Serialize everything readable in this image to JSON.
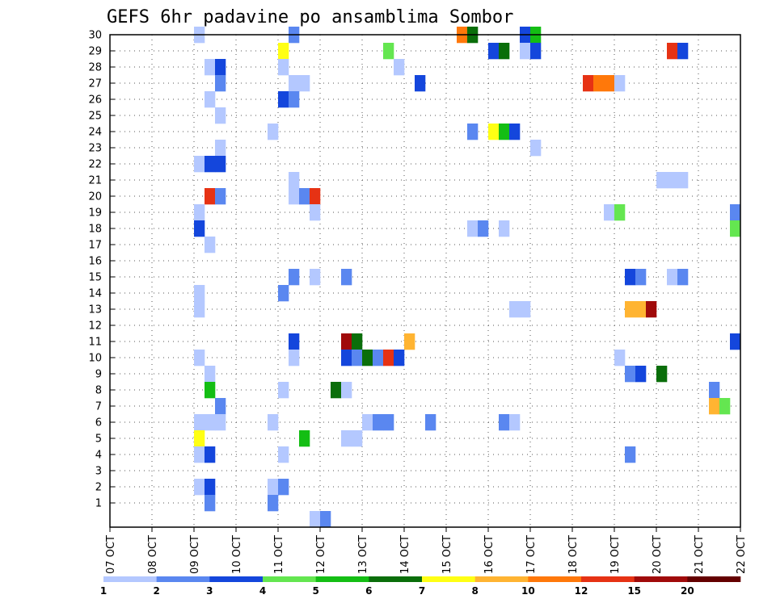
{
  "chart_data": {
    "type": "heatmap",
    "title": "GEFS 6hr padavine po ansamblima Sombor",
    "x_tick_labels": [
      "07 OCT",
      "08 OCT",
      "09 OCT",
      "10 OCT",
      "11 OCT",
      "12 OCT",
      "13 OCT",
      "14 OCT",
      "15 OCT",
      "16 OCT",
      "17 OCT",
      "18 OCT",
      "19 OCT",
      "20 OCT",
      "21 OCT",
      "22 OCT"
    ],
    "y_tick_labels": [
      "1",
      "2",
      "3",
      "4",
      "5",
      "6",
      "7",
      "8",
      "9",
      "10",
      "11",
      "12",
      "13",
      "14",
      "15",
      "16",
      "17",
      "18",
      "19",
      "20",
      "21",
      "22",
      "23",
      "24",
      "25",
      "26",
      "27",
      "28",
      "29",
      "30"
    ],
    "xlim": [
      0,
      60
    ],
    "ylim": [
      0,
      30
    ],
    "grid": true,
    "legend": {
      "placement": "bottom",
      "tick_labels": [
        "1",
        "2",
        "3",
        "4",
        "5",
        "6",
        "7",
        "8",
        "10",
        "12",
        "15",
        "20"
      ],
      "colors": [
        "#b4c8ff",
        "#5a87f0",
        "#1446dc",
        "#64e650",
        "#14be14",
        "#0a6e0a",
        "#ffff14",
        "#ffb432",
        "#ff780a",
        "#e63214",
        "#a00a0a",
        "#640000"
      ]
    },
    "cells": [
      {
        "x": 8,
        "y": 30,
        "level": 1
      },
      {
        "x": 17,
        "y": 30,
        "level": 2
      },
      {
        "x": 33,
        "y": 30,
        "level": 9
      },
      {
        "x": 34,
        "y": 30,
        "level": 6
      },
      {
        "x": 39,
        "y": 30,
        "level": 3
      },
      {
        "x": 40,
        "y": 30,
        "level": 5
      },
      {
        "x": 16,
        "y": 29,
        "level": 7
      },
      {
        "x": 26,
        "y": 29,
        "level": 4
      },
      {
        "x": 36,
        "y": 29,
        "level": 3
      },
      {
        "x": 37,
        "y": 29,
        "level": 6
      },
      {
        "x": 39,
        "y": 29,
        "level": 1
      },
      {
        "x": 40,
        "y": 29,
        "level": 3
      },
      {
        "x": 53,
        "y": 29,
        "level": 10
      },
      {
        "x": 54,
        "y": 29,
        "level": 3
      },
      {
        "x": 9,
        "y": 28,
        "level": 1
      },
      {
        "x": 10,
        "y": 28,
        "level": 3
      },
      {
        "x": 16,
        "y": 28,
        "level": 1
      },
      {
        "x": 27,
        "y": 28,
        "level": 1
      },
      {
        "x": 10,
        "y": 27,
        "level": 2
      },
      {
        "x": 17,
        "y": 27,
        "level": 1
      },
      {
        "x": 18,
        "y": 27,
        "level": 1
      },
      {
        "x": 29,
        "y": 27,
        "level": 3
      },
      {
        "x": 45,
        "y": 27,
        "level": 10
      },
      {
        "x": 46,
        "y": 27,
        "level": 9
      },
      {
        "x": 47,
        "y": 27,
        "level": 9
      },
      {
        "x": 48,
        "y": 27,
        "level": 1
      },
      {
        "x": 9,
        "y": 26,
        "level": 1
      },
      {
        "x": 16,
        "y": 26,
        "level": 3
      },
      {
        "x": 17,
        "y": 26,
        "level": 2
      },
      {
        "x": 10,
        "y": 25,
        "level": 1
      },
      {
        "x": 15,
        "y": 24,
        "level": 1
      },
      {
        "x": 34,
        "y": 24,
        "level": 2
      },
      {
        "x": 36,
        "y": 24,
        "level": 7
      },
      {
        "x": 37,
        "y": 24,
        "level": 5
      },
      {
        "x": 38,
        "y": 24,
        "level": 3
      },
      {
        "x": 10,
        "y": 23,
        "level": 1
      },
      {
        "x": 40,
        "y": 23,
        "level": 1
      },
      {
        "x": 8,
        "y": 22,
        "level": 1
      },
      {
        "x": 9,
        "y": 22,
        "level": 3
      },
      {
        "x": 10,
        "y": 22,
        "level": 3
      },
      {
        "x": 17,
        "y": 21,
        "level": 1
      },
      {
        "x": 52,
        "y": 21,
        "level": 1
      },
      {
        "x": 53,
        "y": 21,
        "level": 1
      },
      {
        "x": 54,
        "y": 21,
        "level": 1
      },
      {
        "x": 9,
        "y": 20,
        "level": 10
      },
      {
        "x": 10,
        "y": 20,
        "level": 2
      },
      {
        "x": 17,
        "y": 20,
        "level": 1
      },
      {
        "x": 18,
        "y": 20,
        "level": 2
      },
      {
        "x": 19,
        "y": 20,
        "level": 10
      },
      {
        "x": 8,
        "y": 19,
        "level": 1
      },
      {
        "x": 19,
        "y": 19,
        "level": 1
      },
      {
        "x": 47,
        "y": 19,
        "level": 1
      },
      {
        "x": 48,
        "y": 19,
        "level": 4
      },
      {
        "x": 59,
        "y": 19,
        "level": 2
      },
      {
        "x": 8,
        "y": 18,
        "level": 3
      },
      {
        "x": 34,
        "y": 18,
        "level": 1
      },
      {
        "x": 35,
        "y": 18,
        "level": 2
      },
      {
        "x": 37,
        "y": 18,
        "level": 1
      },
      {
        "x": 59,
        "y": 18,
        "level": 4
      },
      {
        "x": 9,
        "y": 17,
        "level": 1
      },
      {
        "x": 17,
        "y": 15,
        "level": 2
      },
      {
        "x": 19,
        "y": 15,
        "level": 1
      },
      {
        "x": 22,
        "y": 15,
        "level": 2
      },
      {
        "x": 49,
        "y": 15,
        "level": 3
      },
      {
        "x": 50,
        "y": 15,
        "level": 2
      },
      {
        "x": 53,
        "y": 15,
        "level": 1
      },
      {
        "x": 54,
        "y": 15,
        "level": 2
      },
      {
        "x": 8,
        "y": 14,
        "level": 1
      },
      {
        "x": 16,
        "y": 14,
        "level": 2
      },
      {
        "x": 8,
        "y": 13,
        "level": 1
      },
      {
        "x": 38,
        "y": 13,
        "level": 1
      },
      {
        "x": 39,
        "y": 13,
        "level": 1
      },
      {
        "x": 49,
        "y": 13,
        "level": 8
      },
      {
        "x": 50,
        "y": 13,
        "level": 8
      },
      {
        "x": 51,
        "y": 13,
        "level": 11
      },
      {
        "x": 17,
        "y": 11,
        "level": 3
      },
      {
        "x": 22,
        "y": 11,
        "level": 11
      },
      {
        "x": 23,
        "y": 11,
        "level": 6
      },
      {
        "x": 28,
        "y": 11,
        "level": 8
      },
      {
        "x": 59,
        "y": 11,
        "level": 3
      },
      {
        "x": 8,
        "y": 10,
        "level": 1
      },
      {
        "x": 17,
        "y": 10,
        "level": 1
      },
      {
        "x": 22,
        "y": 10,
        "level": 3
      },
      {
        "x": 23,
        "y": 10,
        "level": 2
      },
      {
        "x": 24,
        "y": 10,
        "level": 6
      },
      {
        "x": 25,
        "y": 10,
        "level": 2
      },
      {
        "x": 26,
        "y": 10,
        "level": 10
      },
      {
        "x": 27,
        "y": 10,
        "level": 3
      },
      {
        "x": 48,
        "y": 10,
        "level": 1
      },
      {
        "x": 9,
        "y": 9,
        "level": 1
      },
      {
        "x": 49,
        "y": 9,
        "level": 2
      },
      {
        "x": 50,
        "y": 9,
        "level": 3
      },
      {
        "x": 52,
        "y": 9,
        "level": 6
      },
      {
        "x": 9,
        "y": 8,
        "level": 5
      },
      {
        "x": 16,
        "y": 8,
        "level": 1
      },
      {
        "x": 21,
        "y": 8,
        "level": 6
      },
      {
        "x": 22,
        "y": 8,
        "level": 1
      },
      {
        "x": 57,
        "y": 8,
        "level": 2
      },
      {
        "x": 10,
        "y": 7,
        "level": 2
      },
      {
        "x": 57,
        "y": 7,
        "level": 8
      },
      {
        "x": 58,
        "y": 7,
        "level": 4
      },
      {
        "x": 8,
        "y": 6,
        "level": 1
      },
      {
        "x": 9,
        "y": 6,
        "level": 1
      },
      {
        "x": 10,
        "y": 6,
        "level": 1
      },
      {
        "x": 15,
        "y": 6,
        "level": 1
      },
      {
        "x": 24,
        "y": 6,
        "level": 1
      },
      {
        "x": 25,
        "y": 6,
        "level": 2
      },
      {
        "x": 26,
        "y": 6,
        "level": 2
      },
      {
        "x": 30,
        "y": 6,
        "level": 2
      },
      {
        "x": 37,
        "y": 6,
        "level": 2
      },
      {
        "x": 38,
        "y": 6,
        "level": 1
      },
      {
        "x": 8,
        "y": 5,
        "level": 7
      },
      {
        "x": 18,
        "y": 5,
        "level": 5
      },
      {
        "x": 22,
        "y": 5,
        "level": 1
      },
      {
        "x": 23,
        "y": 5,
        "level": 1
      },
      {
        "x": 8,
        "y": 4,
        "level": 1
      },
      {
        "x": 9,
        "y": 4,
        "level": 3
      },
      {
        "x": 16,
        "y": 4,
        "level": 1
      },
      {
        "x": 49,
        "y": 4,
        "level": 2
      },
      {
        "x": 8,
        "y": 2,
        "level": 1
      },
      {
        "x": 9,
        "y": 2,
        "level": 3
      },
      {
        "x": 15,
        "y": 2,
        "level": 1
      },
      {
        "x": 16,
        "y": 2,
        "level": 2
      },
      {
        "x": 9,
        "y": 1,
        "level": 2
      },
      {
        "x": 15,
        "y": 1,
        "level": 2
      },
      {
        "x": 19,
        "y": 0,
        "level": 1
      },
      {
        "x": 20,
        "y": 0,
        "level": 2
      }
    ]
  }
}
